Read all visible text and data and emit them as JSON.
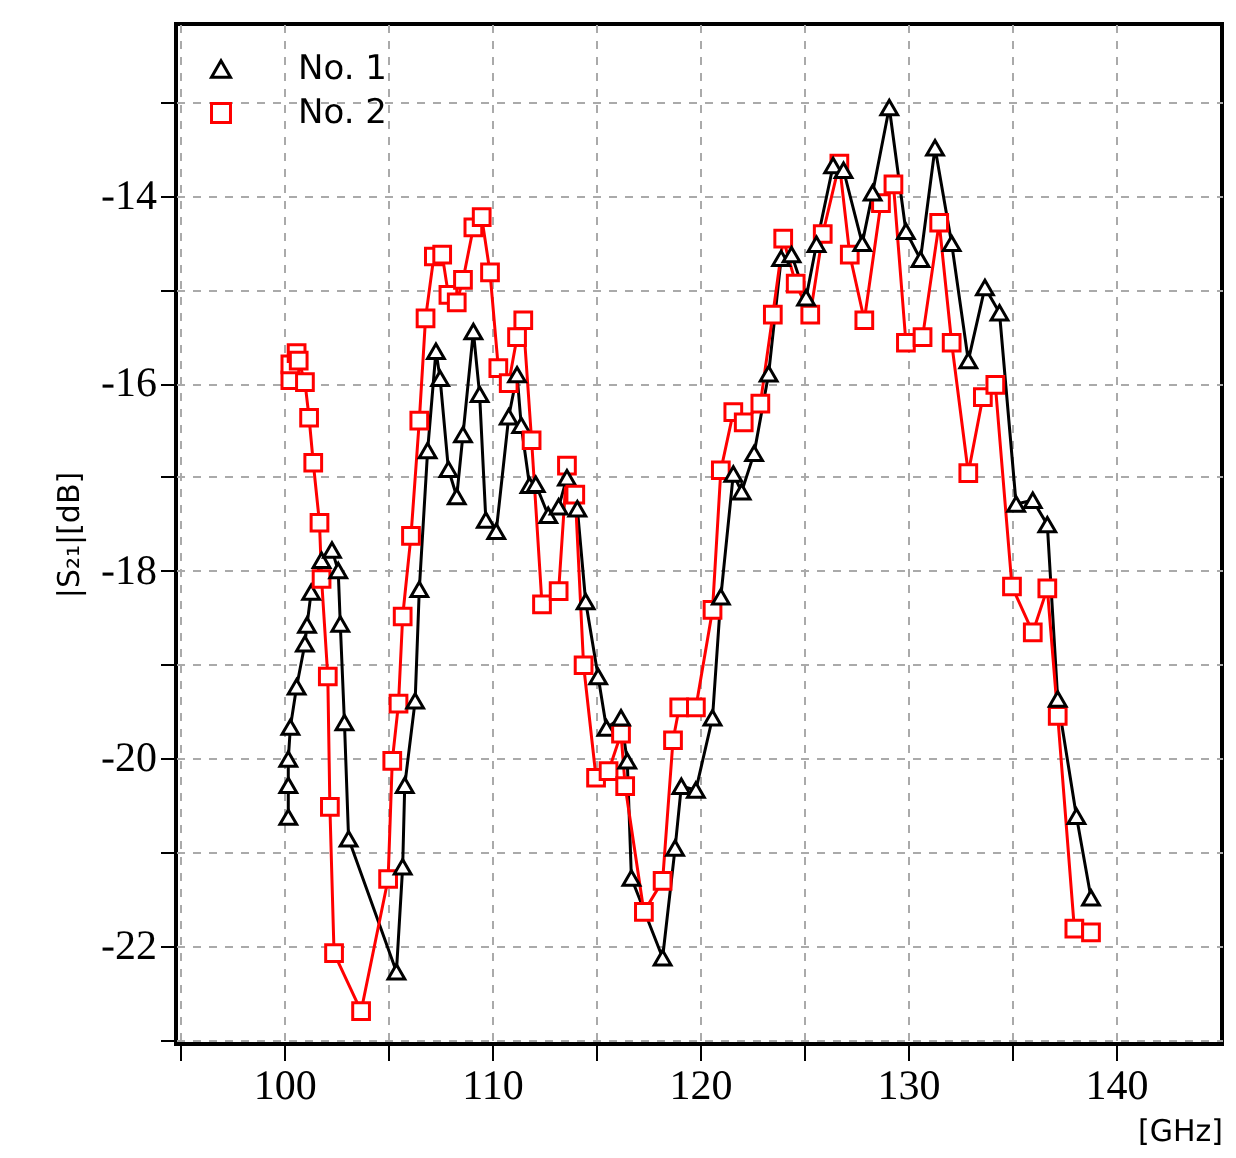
{
  "chart_data": {
    "type": "line",
    "xlabel": "[GHz]",
    "ylabel": "|S₂₁|[dB]",
    "xlim": [
      94.8,
      145.1
    ],
    "xticks": [
      {
        "value": 95,
        "label": null
      },
      100,
      {
        "value": 105,
        "label": null
      },
      110,
      {
        "value": 115,
        "label": null
      },
      120,
      {
        "value": 125,
        "label": null
      },
      130,
      {
        "value": 135,
        "label": null
      },
      140
    ],
    "ylim": [
      -23.05,
      -12.17
    ],
    "yticks": [
      {
        "value": -23,
        "label": null
      },
      -22,
      {
        "value": -21,
        "label": null
      },
      -20,
      {
        "value": -19,
        "label": null
      },
      -18,
      {
        "value": -17,
        "label": null
      },
      -16,
      {
        "value": -15,
        "label": null
      },
      -14,
      {
        "value": -13,
        "label": null
      }
    ],
    "grid": true,
    "legend": "top left",
    "line_style": "solid",
    "series": [
      {
        "name": "No. 1",
        "color": "#000000",
        "marker": "triangle",
        "x": [
          100.2,
          100.2,
          100.2,
          100.3,
          100.6,
          101.0,
          101.1,
          101.3,
          101.8,
          102.3,
          102.6,
          102.7,
          102.9,
          103.1,
          105.4,
          105.7,
          105.8,
          106.3,
          106.5,
          106.9,
          107.3,
          107.5,
          107.9,
          108.3,
          108.6,
          109.1,
          109.4,
          109.7,
          110.2,
          110.8,
          111.2,
          111.4,
          111.8,
          112.1,
          112.7,
          113.2,
          113.6,
          114.1,
          114.5,
          115.1,
          115.5,
          116.2,
          116.5,
          116.7,
          118.2,
          118.8,
          119.1,
          119.8,
          120.6,
          121.0,
          121.6,
          122.0,
          122.6,
          123.3,
          123.9,
          124.4,
          125.1,
          125.6,
          126.4,
          126.9,
          127.8,
          128.3,
          129.1,
          129.9,
          130.6,
          131.3,
          132.1,
          132.9,
          133.7,
          134.4,
          135.2,
          136.0,
          136.7,
          137.2,
          138.1,
          138.8
        ],
        "values": [
          -20.63,
          -20.29,
          -20.01,
          -19.67,
          -19.24,
          -18.78,
          -18.58,
          -18.23,
          -17.89,
          -17.78,
          -18.0,
          -18.57,
          -19.62,
          -20.86,
          -22.28,
          -21.16,
          -20.29,
          -19.39,
          -18.2,
          -16.72,
          -15.66,
          -15.95,
          -16.92,
          -17.21,
          -16.55,
          -15.45,
          -16.12,
          -17.46,
          -17.58,
          -16.36,
          -15.91,
          -16.45,
          -17.09,
          -17.08,
          -17.41,
          -17.32,
          -17.01,
          -17.34,
          -18.33,
          -19.13,
          -19.68,
          -19.57,
          -20.03,
          -21.28,
          -22.13,
          -20.96,
          -20.3,
          -20.34,
          -19.57,
          -18.28,
          -16.97,
          -17.16,
          -16.75,
          -15.9,
          -14.67,
          -14.63,
          -15.09,
          -14.52,
          -13.68,
          -13.73,
          -14.51,
          -13.97,
          -13.06,
          -14.38,
          -14.68,
          -13.49,
          -14.51,
          -15.76,
          -14.98,
          -15.25,
          -17.29,
          -17.25,
          -17.51,
          -19.37,
          -20.62,
          -21.49
        ]
      },
      {
        "name": "No. 2",
        "color": "#ff0000",
        "marker": "square",
        "x": [
          100.3,
          100.3,
          100.6,
          100.7,
          101.0,
          101.2,
          101.4,
          101.7,
          101.8,
          102.1,
          102.2,
          102.4,
          103.7,
          105.0,
          105.2,
          105.5,
          105.7,
          106.1,
          106.5,
          106.8,
          107.2,
          107.6,
          107.9,
          108.3,
          108.6,
          109.1,
          109.5,
          109.9,
          110.3,
          110.8,
          111.2,
          111.5,
          111.9,
          112.4,
          113.2,
          113.6,
          114.0,
          114.4,
          115.0,
          115.6,
          116.2,
          116.4,
          117.3,
          118.2,
          118.7,
          119.0,
          119.8,
          120.6,
          121.0,
          121.6,
          122.1,
          122.9,
          123.5,
          124.0,
          124.6,
          125.3,
          125.9,
          126.7,
          127.2,
          127.9,
          128.7,
          129.3,
          129.9,
          130.7,
          131.5,
          132.1,
          132.9,
          133.6,
          134.2,
          135.0,
          136.0,
          136.7,
          137.2,
          138.0,
          138.8
        ],
        "values": [
          -15.97,
          -15.8,
          -15.68,
          -15.76,
          -15.99,
          -16.37,
          -16.85,
          -17.49,
          -18.09,
          -19.13,
          -20.52,
          -22.08,
          -22.7,
          -21.29,
          -20.03,
          -19.42,
          -18.49,
          -17.63,
          -16.4,
          -15.31,
          -14.65,
          -14.63,
          -15.06,
          -15.14,
          -14.9,
          -14.34,
          -14.23,
          -14.82,
          -15.84,
          -16.0,
          -15.51,
          -15.33,
          -16.61,
          -18.36,
          -18.22,
          -16.88,
          -17.19,
          -19.01,
          -20.21,
          -20.14,
          -19.74,
          -20.3,
          -21.64,
          -21.31,
          -19.81,
          -19.46,
          -19.46,
          -18.42,
          -16.93,
          -16.31,
          -16.42,
          -16.22,
          -15.27,
          -14.46,
          -14.94,
          -15.27,
          -14.41,
          -13.66,
          -14.63,
          -15.33,
          -14.08,
          -13.88,
          -15.57,
          -15.51,
          -14.29,
          -15.57,
          -16.96,
          -16.15,
          -16.02,
          -18.17,
          -18.66,
          -18.19,
          -19.55,
          -21.82,
          -21.86
        ]
      }
    ]
  }
}
